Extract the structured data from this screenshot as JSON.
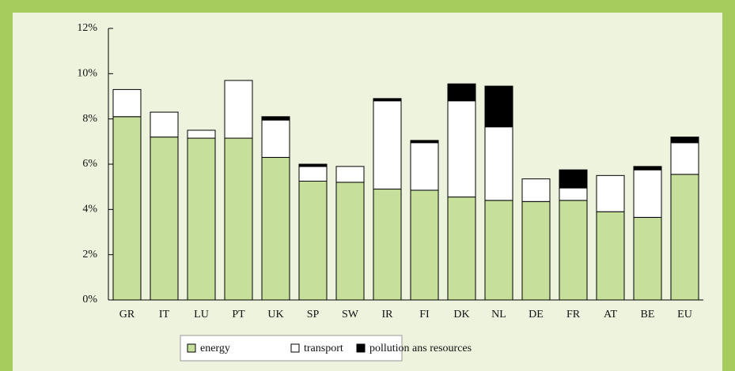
{
  "chart_data": {
    "type": "stacked-bar",
    "categories": [
      "GR",
      "IT",
      "LU",
      "PT",
      "UK",
      "SP",
      "SW",
      "IR",
      "FI",
      "DK",
      "NL",
      "DE",
      "FR",
      "AT",
      "BE",
      "EU"
    ],
    "series": [
      {
        "name": "energy",
        "color": "#c6df9a",
        "values": [
          8.1,
          7.2,
          7.15,
          7.15,
          6.3,
          5.25,
          5.2,
          4.9,
          4.85,
          4.55,
          4.4,
          4.35,
          4.4,
          3.9,
          3.65,
          5.55
        ]
      },
      {
        "name": "transport",
        "color": "#ffffff",
        "values": [
          1.2,
          1.1,
          0.35,
          2.55,
          1.65,
          0.65,
          0.7,
          3.9,
          2.1,
          4.25,
          3.25,
          1.0,
          0.55,
          1.6,
          2.1,
          1.4
        ]
      },
      {
        "name": "pollution ans resources",
        "color": "#000000",
        "values": [
          0,
          0,
          0,
          0,
          0.15,
          0.1,
          0,
          0.1,
          0.1,
          0.75,
          1.8,
          0,
          0.8,
          0,
          0.15,
          0.25
        ]
      }
    ],
    "ylim": [
      0,
      12
    ],
    "yticks": [
      {
        "value": 0,
        "label": "0%"
      },
      {
        "value": 2,
        "label": "2%"
      },
      {
        "value": 4,
        "label": "4%"
      },
      {
        "value": 6,
        "label": "6%"
      },
      {
        "value": 8,
        "label": "8%"
      },
      {
        "value": 10,
        "label": "10%"
      },
      {
        "value": 12,
        "label": "12%"
      }
    ]
  }
}
